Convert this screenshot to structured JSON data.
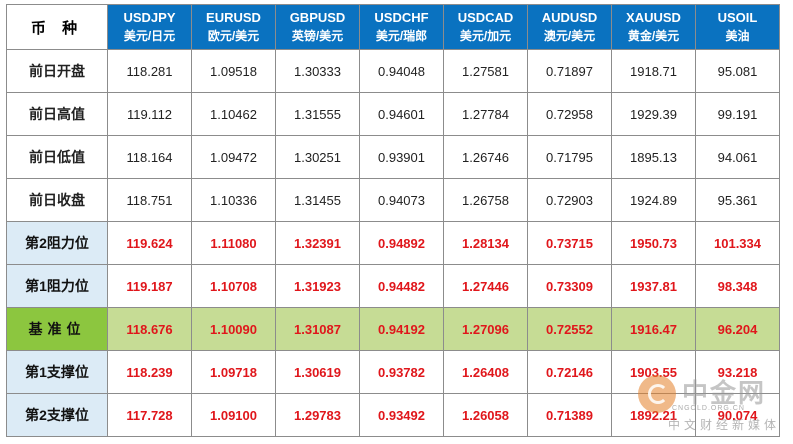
{
  "corner_label": "币 种",
  "columns": [
    {
      "symbol": "USDJPY",
      "cn": "美元/日元"
    },
    {
      "symbol": "EURUSD",
      "cn": "欧元/美元"
    },
    {
      "symbol": "GBPUSD",
      "cn": "英镑/美元"
    },
    {
      "symbol": "USDCHF",
      "cn": "美元/瑞郎"
    },
    {
      "symbol": "USDCAD",
      "cn": "美元/加元"
    },
    {
      "symbol": "AUDUSD",
      "cn": "澳元/美元"
    },
    {
      "symbol": "XAUUSD",
      "cn": "黄金/美元"
    },
    {
      "symbol": "USOIL",
      "cn": "美油"
    }
  ],
  "rows": [
    {
      "label": "前日开盘",
      "values": [
        "118.281",
        "1.09518",
        "1.30333",
        "0.94048",
        "1.27581",
        "0.71897",
        "1918.71",
        "95.081"
      ]
    },
    {
      "label": "前日高值",
      "values": [
        "119.112",
        "1.10462",
        "1.31555",
        "0.94601",
        "1.27784",
        "0.72958",
        "1929.39",
        "99.191"
      ]
    },
    {
      "label": "前日低值",
      "values": [
        "118.164",
        "1.09472",
        "1.30251",
        "0.93901",
        "1.26746",
        "0.71795",
        "1895.13",
        "94.061"
      ]
    },
    {
      "label": "前日收盘",
      "values": [
        "118.751",
        "1.10336",
        "1.31455",
        "0.94073",
        "1.26758",
        "0.72903",
        "1924.89",
        "95.361"
      ]
    },
    {
      "label": "第2阻力位",
      "values": [
        "119.624",
        "1.11080",
        "1.32391",
        "0.94892",
        "1.28134",
        "0.73715",
        "1950.73",
        "101.334"
      ]
    },
    {
      "label": "第1阻力位",
      "values": [
        "119.187",
        "1.10708",
        "1.31923",
        "0.94482",
        "1.27446",
        "0.73309",
        "1937.81",
        "98.348"
      ]
    },
    {
      "label": "基准位",
      "values": [
        "118.676",
        "1.10090",
        "1.31087",
        "0.94192",
        "1.27096",
        "0.72552",
        "1916.47",
        "96.204"
      ]
    },
    {
      "label": "第1支撑位",
      "values": [
        "118.239",
        "1.09718",
        "1.30619",
        "0.93782",
        "1.26408",
        "0.72146",
        "1903.55",
        "93.218"
      ]
    },
    {
      "label": "第2支撑位",
      "values": [
        "117.728",
        "1.09100",
        "1.29783",
        "0.93492",
        "1.26058",
        "0.71389",
        "1892.21",
        "90.074"
      ]
    }
  ],
  "watermark": {
    "logo": "中金网",
    "url": "CNGOLD.ORG.CN",
    "subtitle": "中文财经新媒体"
  },
  "colors": {
    "header_bg": "#0a72c0",
    "level_text": "#e0161b",
    "level_label_bg": "#dcebf6",
    "pivot_row_bg": "#c6dc95",
    "pivot_label_bg": "#8cc63f"
  }
}
